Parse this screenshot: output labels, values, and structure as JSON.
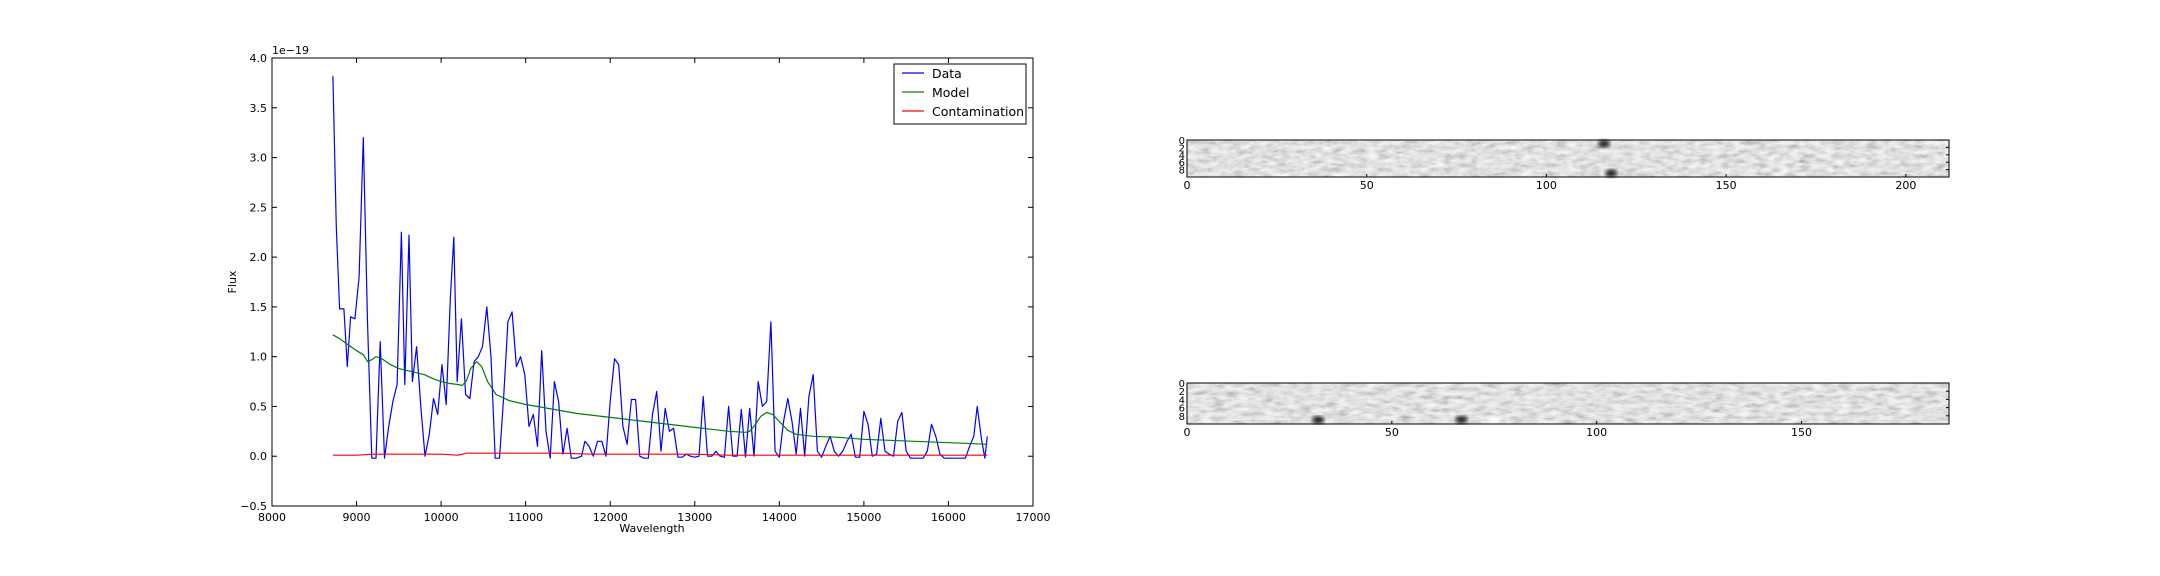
{
  "chart_data": [
    {
      "type": "line",
      "xlabel": "Wavelength",
      "ylabel": "Flux",
      "offset_text": "1e−19",
      "xlim": [
        8000,
        17000
      ],
      "ylim": [
        -0.5,
        4.0
      ],
      "xticks": [
        8000,
        9000,
        10000,
        11000,
        12000,
        13000,
        14000,
        15000,
        16000,
        17000
      ],
      "yticks": [
        -0.5,
        0.0,
        0.5,
        1.0,
        1.5,
        2.0,
        2.5,
        3.0,
        3.5,
        4.0
      ],
      "xtick_labels": [
        "8000",
        "9000",
        "10000",
        "11000",
        "12000",
        "13000",
        "14000",
        "15000",
        "16000",
        "17000"
      ],
      "ytick_labels": [
        "−0.5",
        "0.0",
        "0.5",
        "1.0",
        "1.5",
        "2.0",
        "2.5",
        "3.0",
        "3.5",
        "4.0"
      ],
      "grid": false,
      "legend_position": "top-right",
      "series": [
        {
          "name": "Data",
          "color": "#0000ff",
          "points": [
            [
              8720,
              3.82
            ],
            [
              8760,
              2.3
            ],
            [
              8800,
              1.48
            ],
            [
              8850,
              1.48
            ],
            [
              8890,
              0.9
            ],
            [
              8930,
              1.4
            ],
            [
              8980,
              1.38
            ],
            [
              9030,
              1.8
            ],
            [
              9080,
              3.2
            ],
            [
              9130,
              1.35
            ],
            [
              9180,
              -0.02
            ],
            [
              9230,
              -0.02
            ],
            [
              9280,
              1.15
            ],
            [
              9330,
              -0.02
            ],
            [
              9380,
              0.3
            ],
            [
              9430,
              0.55
            ],
            [
              9480,
              0.72
            ],
            [
              9530,
              2.25
            ],
            [
              9570,
              0.72
            ],
            [
              9620,
              2.22
            ],
            [
              9660,
              0.75
            ],
            [
              9710,
              1.1
            ],
            [
              9760,
              0.5
            ],
            [
              9810,
              0.0
            ],
            [
              9860,
              0.22
            ],
            [
              9910,
              0.58
            ],
            [
              9960,
              0.42
            ],
            [
              10010,
              0.92
            ],
            [
              10060,
              0.52
            ],
            [
              10110,
              1.6
            ],
            [
              10150,
              2.2
            ],
            [
              10190,
              0.75
            ],
            [
              10240,
              1.38
            ],
            [
              10290,
              0.62
            ],
            [
              10340,
              0.58
            ],
            [
              10390,
              0.95
            ],
            [
              10440,
              1.0
            ],
            [
              10490,
              1.1
            ],
            [
              10540,
              1.5
            ],
            [
              10590,
              1.0
            ],
            [
              10640,
              -0.02
            ],
            [
              10690,
              -0.02
            ],
            [
              10740,
              0.6
            ],
            [
              10790,
              1.35
            ],
            [
              10840,
              1.45
            ],
            [
              10890,
              0.9
            ],
            [
              10940,
              1.0
            ],
            [
              10990,
              0.82
            ],
            [
              11040,
              0.3
            ],
            [
              11090,
              0.42
            ],
            [
              11140,
              0.1
            ],
            [
              11190,
              1.06
            ],
            [
              11240,
              0.25
            ],
            [
              11290,
              -0.02
            ],
            [
              11340,
              0.75
            ],
            [
              11390,
              0.55
            ],
            [
              11440,
              0.02
            ],
            [
              11490,
              0.28
            ],
            [
              11540,
              -0.02
            ],
            [
              11600,
              -0.02
            ],
            [
              11660,
              0.0
            ],
            [
              11700,
              0.15
            ],
            [
              11750,
              0.1
            ],
            [
              11800,
              0.0
            ],
            [
              11850,
              0.15
            ],
            [
              11900,
              0.15
            ],
            [
              11950,
              0.0
            ],
            [
              12000,
              0.55
            ],
            [
              12050,
              0.98
            ],
            [
              12100,
              0.92
            ],
            [
              12150,
              0.3
            ],
            [
              12200,
              0.12
            ],
            [
              12250,
              0.57
            ],
            [
              12300,
              0.57
            ],
            [
              12350,
              0.0
            ],
            [
              12400,
              -0.02
            ],
            [
              12450,
              -0.02
            ],
            [
              12500,
              0.42
            ],
            [
              12550,
              0.65
            ],
            [
              12600,
              0.05
            ],
            [
              12650,
              0.48
            ],
            [
              12700,
              0.25
            ],
            [
              12750,
              0.28
            ],
            [
              12800,
              -0.01
            ],
            [
              12850,
              -0.01
            ],
            [
              12900,
              0.02
            ],
            [
              12950,
              0.0
            ],
            [
              13000,
              -0.01
            ],
            [
              13050,
              0.0
            ],
            [
              13100,
              0.6
            ],
            [
              13150,
              0.0
            ],
            [
              13200,
              0.0
            ],
            [
              13250,
              0.05
            ],
            [
              13300,
              0.0
            ],
            [
              13350,
              -0.01
            ],
            [
              13400,
              0.5
            ],
            [
              13450,
              0.0
            ],
            [
              13500,
              0.0
            ],
            [
              13550,
              0.47
            ],
            [
              13600,
              -0.01
            ],
            [
              13650,
              0.48
            ],
            [
              13700,
              0.0
            ],
            [
              13750,
              0.75
            ],
            [
              13800,
              0.5
            ],
            [
              13850,
              0.55
            ],
            [
              13900,
              1.35
            ],
            [
              13950,
              0.05
            ],
            [
              14000,
              -0.01
            ],
            [
              14050,
              0.35
            ],
            [
              14100,
              0.58
            ],
            [
              14150,
              0.35
            ],
            [
              14200,
              0.02
            ],
            [
              14250,
              0.48
            ],
            [
              14300,
              0.0
            ],
            [
              14350,
              0.6
            ],
            [
              14400,
              0.82
            ],
            [
              14450,
              0.05
            ],
            [
              14500,
              -0.01
            ],
            [
              14550,
              0.1
            ],
            [
              14600,
              0.2
            ],
            [
              14650,
              0.05
            ],
            [
              14700,
              0.0
            ],
            [
              14750,
              0.05
            ],
            [
              14800,
              0.15
            ],
            [
              14850,
              0.22
            ],
            [
              14900,
              -0.01
            ],
            [
              14950,
              -0.01
            ],
            [
              15000,
              0.45
            ],
            [
              15050,
              0.32
            ],
            [
              15100,
              0.0
            ],
            [
              15150,
              0.02
            ],
            [
              15200,
              0.38
            ],
            [
              15250,
              0.05
            ],
            [
              15300,
              0.02
            ],
            [
              15350,
              0.0
            ],
            [
              15400,
              0.35
            ],
            [
              15450,
              0.44
            ],
            [
              15500,
              0.05
            ],
            [
              15550,
              -0.02
            ],
            [
              15600,
              -0.02
            ],
            [
              15650,
              -0.02
            ],
            [
              15700,
              -0.02
            ],
            [
              15750,
              0.05
            ],
            [
              15800,
              0.32
            ],
            [
              15850,
              0.2
            ],
            [
              15900,
              0.02
            ],
            [
              15950,
              -0.02
            ],
            [
              16000,
              -0.02
            ],
            [
              16050,
              -0.02
            ],
            [
              16100,
              -0.02
            ],
            [
              16150,
              -0.02
            ],
            [
              16200,
              -0.02
            ],
            [
              16250,
              0.1
            ],
            [
              16300,
              0.2
            ],
            [
              16340,
              0.5
            ],
            [
              16390,
              0.18
            ],
            [
              16430,
              -0.02
            ],
            [
              16460,
              0.2
            ]
          ]
        },
        {
          "name": "Model",
          "color": "#008000",
          "points": [
            [
              8720,
              1.22
            ],
            [
              8800,
              1.18
            ],
            [
              8900,
              1.12
            ],
            [
              9000,
              1.06
            ],
            [
              9080,
              1.02
            ],
            [
              9130,
              0.95
            ],
            [
              9180,
              0.97
            ],
            [
              9230,
              1.0
            ],
            [
              9300,
              0.98
            ],
            [
              9400,
              0.92
            ],
            [
              9500,
              0.88
            ],
            [
              9600,
              0.86
            ],
            [
              9700,
              0.84
            ],
            [
              9800,
              0.82
            ],
            [
              9900,
              0.78
            ],
            [
              10000,
              0.75
            ],
            [
              10100,
              0.73
            ],
            [
              10200,
              0.72
            ],
            [
              10250,
              0.71
            ],
            [
              10300,
              0.76
            ],
            [
              10350,
              0.88
            ],
            [
              10420,
              0.95
            ],
            [
              10480,
              0.9
            ],
            [
              10550,
              0.75
            ],
            [
              10650,
              0.62
            ],
            [
              10800,
              0.56
            ],
            [
              11000,
              0.52
            ],
            [
              11200,
              0.49
            ],
            [
              11400,
              0.46
            ],
            [
              11600,
              0.43
            ],
            [
              11800,
              0.41
            ],
            [
              12000,
              0.39
            ],
            [
              12200,
              0.37
            ],
            [
              12400,
              0.35
            ],
            [
              12600,
              0.33
            ],
            [
              12800,
              0.31
            ],
            [
              13000,
              0.29
            ],
            [
              13200,
              0.27
            ],
            [
              13400,
              0.25
            ],
            [
              13600,
              0.24
            ],
            [
              13650,
              0.25
            ],
            [
              13700,
              0.3
            ],
            [
              13780,
              0.4
            ],
            [
              13850,
              0.44
            ],
            [
              13920,
              0.42
            ],
            [
              14000,
              0.35
            ],
            [
              14100,
              0.26
            ],
            [
              14200,
              0.22
            ],
            [
              14400,
              0.2
            ],
            [
              14700,
              0.19
            ],
            [
              15000,
              0.17
            ],
            [
              15300,
              0.16
            ],
            [
              15600,
              0.15
            ],
            [
              15900,
              0.14
            ],
            [
              16200,
              0.13
            ],
            [
              16460,
              0.12
            ]
          ]
        },
        {
          "name": "Contamination",
          "color": "#ff0000",
          "points": [
            [
              8720,
              0.01
            ],
            [
              9000,
              0.01
            ],
            [
              9200,
              0.02
            ],
            [
              9500,
              0.02
            ],
            [
              9800,
              0.02
            ],
            [
              10000,
              0.02
            ],
            [
              10200,
              0.01
            ],
            [
              10300,
              0.03
            ],
            [
              10600,
              0.03
            ],
            [
              11000,
              0.03
            ],
            [
              11400,
              0.03
            ],
            [
              11800,
              0.02
            ],
            [
              12200,
              0.02
            ],
            [
              12600,
              0.02
            ],
            [
              13000,
              0.02
            ],
            [
              13400,
              0.01
            ],
            [
              13800,
              0.01
            ],
            [
              14200,
              0.01
            ],
            [
              14600,
              0.01
            ],
            [
              15000,
              0.01
            ],
            [
              15400,
              0.01
            ],
            [
              15800,
              0.01
            ],
            [
              16200,
              0.01
            ],
            [
              16460,
              0.01
            ]
          ]
        }
      ]
    },
    {
      "type": "heatmap",
      "colormap": "gray",
      "xlim": [
        0,
        212
      ],
      "ylim": [
        0,
        10
      ],
      "xticks": [
        0,
        50,
        100,
        150,
        200
      ],
      "xtick_labels": [
        "0",
        "50",
        "100",
        "150",
        "200"
      ],
      "yticks": [
        0,
        2,
        4,
        6,
        8
      ],
      "ytick_labels": [
        "0",
        "2",
        "4",
        "6",
        "8"
      ],
      "dark_spots": [
        [
          118,
          9
        ],
        [
          116,
          1
        ]
      ]
    },
    {
      "type": "heatmap",
      "colormap": "gray",
      "xlim": [
        0,
        186
      ],
      "ylim": [
        0,
        10
      ],
      "xticks": [
        0,
        50,
        100,
        150
      ],
      "xtick_labels": [
        "0",
        "50",
        "100",
        "150"
      ],
      "yticks": [
        0,
        2,
        4,
        6,
        8
      ],
      "ytick_labels": [
        "0",
        "2",
        "4",
        "6",
        "8"
      ],
      "dark_spots": [
        [
          67,
          9
        ],
        [
          32,
          9
        ]
      ],
      "bright_spots": [
        [
          75,
          9
        ]
      ]
    }
  ]
}
